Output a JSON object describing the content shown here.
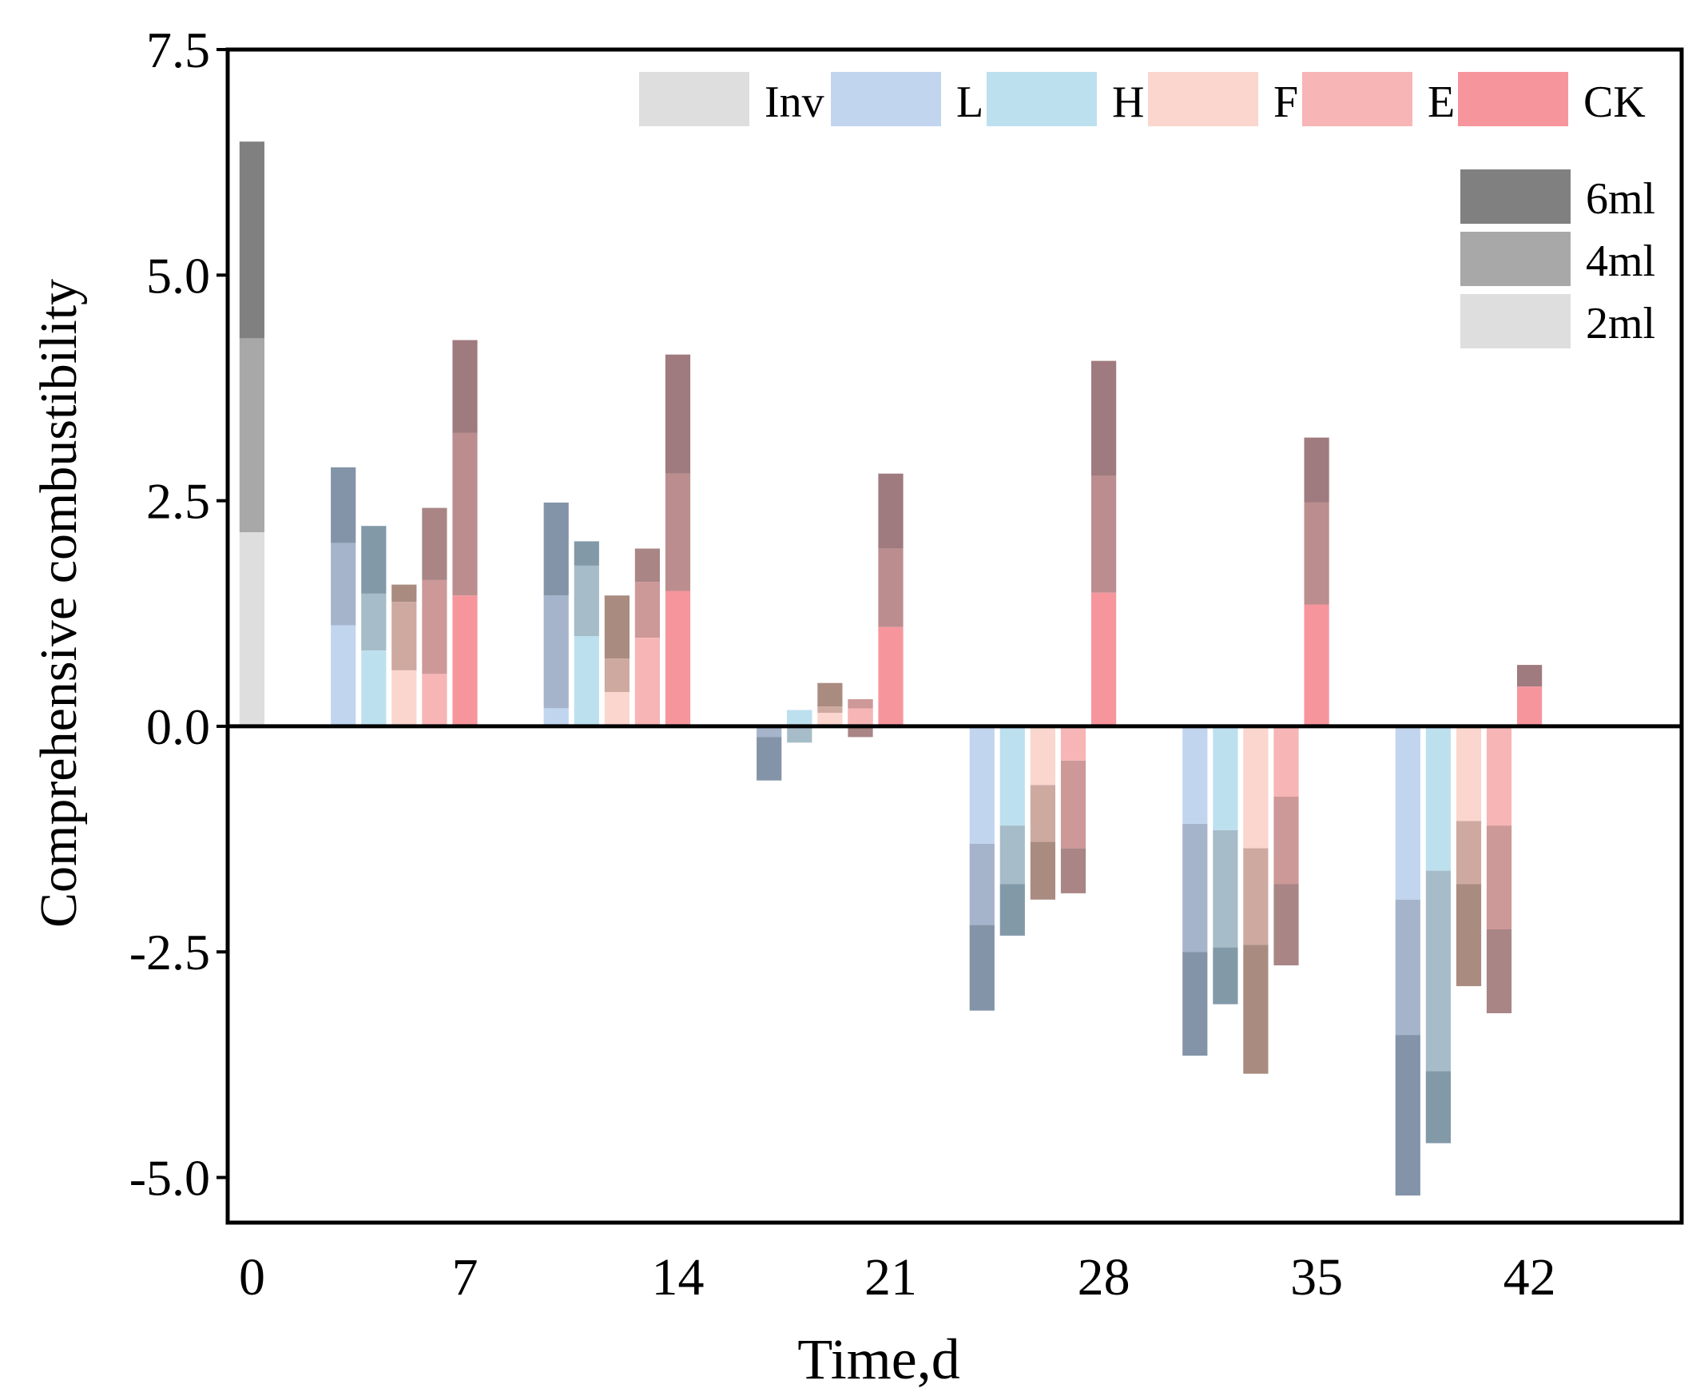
{
  "chart_data": {
    "type": "bar",
    "subtype": "stacked-overlapping",
    "title": "",
    "xlabel": "Time,d",
    "ylabel": "Comprehensive combustibility",
    "ylim": [
      -5.5,
      7.5
    ],
    "xlim": [
      -0.8,
      47
    ],
    "yticks": [
      7.5,
      5.0,
      2.5,
      0.0,
      -2.5,
      -5.0
    ],
    "ytick_labels": [
      "7.5",
      "5.0",
      "2.5",
      "0.0",
      "-2.5",
      "-5.0"
    ],
    "xticks": [
      0,
      7,
      14,
      21,
      28,
      35,
      42
    ],
    "xtick_labels": [
      "0",
      "7",
      "14",
      "21",
      "28",
      "35",
      "42"
    ],
    "groups": [
      "Inv",
      "L",
      "H",
      "F",
      "E",
      "CK"
    ],
    "doses": [
      "2ml",
      "4ml",
      "6ml"
    ],
    "colors": {
      "Inv": "#dedede",
      "L": "#c2d5ef",
      "H": "#bde0ef",
      "F": "#fad6ce",
      "E": "#f7b5b5",
      "CK": "#f7959d",
      "dose6": "#808080",
      "dose4": "#a8a8a8",
      "dose2": "#dedede",
      "L_mid": "#a5b4cb",
      "L_dark": "#8393a8",
      "H_mid": "#a6bcc8",
      "H_dark": "#8299a8",
      "F_mid": "#cea9a0",
      "F_dark": "#a98b80",
      "E_mid": "#cd9898",
      "E_dark": "#a98585",
      "CK_mid": "#bc8d8e",
      "CK_dark": "#9f7a7e"
    },
    "series": [
      {
        "name": "Inv",
        "days": [
          0
        ],
        "x": [
          0
        ],
        "values": [
          [
            2.15,
            4.3,
            6.48
          ]
        ]
      },
      {
        "name": "L",
        "days": [
          7,
          14,
          21,
          28,
          35,
          42
        ],
        "x": [
          3,
          10,
          17,
          24,
          31,
          38
        ],
        "values": [
          [
            1.12,
            2.03,
            2.87
          ],
          [
            0.2,
            1.45,
            2.48
          ],
          [
            0.0,
            -0.12,
            -0.6
          ],
          [
            -1.3,
            -2.2,
            -3.15
          ],
          [
            -1.08,
            -2.5,
            -3.65
          ],
          [
            -1.92,
            -3.42,
            -5.2
          ]
        ]
      },
      {
        "name": "H",
        "days": [
          7,
          14,
          21,
          28,
          35,
          42
        ],
        "x": [
          4,
          11,
          18,
          25,
          32,
          39
        ],
        "values": [
          [
            0.84,
            1.47,
            2.22
          ],
          [
            1.0,
            1.78,
            2.05
          ],
          [
            0.18,
            -0.18,
            -0.18
          ],
          [
            -1.1,
            -1.75,
            -2.32
          ],
          [
            -1.15,
            -2.45,
            -3.08
          ],
          [
            -1.6,
            -3.82,
            -4.62
          ]
        ]
      },
      {
        "name": "F",
        "days": [
          7,
          14,
          21,
          28,
          35,
          42
        ],
        "x": [
          5,
          12,
          19,
          26,
          33,
          40
        ],
        "values": [
          [
            0.62,
            1.38,
            1.57
          ],
          [
            0.38,
            0.75,
            1.45
          ],
          [
            0.15,
            0.22,
            0.48
          ],
          [
            -0.65,
            -1.28,
            -1.92
          ],
          [
            -1.35,
            -2.42,
            -3.85
          ],
          [
            -1.05,
            -1.75,
            -2.88
          ]
        ]
      },
      {
        "name": "E",
        "days": [
          7,
          14,
          21,
          28,
          35,
          42
        ],
        "x": [
          6,
          13,
          20,
          27,
          34,
          41
        ],
        "values": [
          [
            0.58,
            1.62,
            2.42
          ],
          [
            0.98,
            1.6,
            1.97
          ],
          [
            0.2,
            0.3,
            -0.12
          ],
          [
            -0.38,
            -1.35,
            -1.85
          ],
          [
            -0.78,
            -1.75,
            -2.65
          ],
          [
            -1.1,
            -2.25,
            -3.18
          ]
        ]
      },
      {
        "name": "CK",
        "days": [
          7,
          14,
          21,
          28,
          35,
          42
        ],
        "x": [
          7,
          14,
          21,
          28,
          35,
          42
        ],
        "values": [
          [
            1.45,
            3.25,
            4.28
          ],
          [
            1.5,
            2.8,
            4.12
          ],
          [
            1.1,
            1.97,
            2.8
          ],
          [
            1.48,
            2.78,
            4.05
          ],
          [
            1.35,
            2.48,
            3.2
          ],
          [
            0.44,
            0.44,
            0.68
          ]
        ]
      }
    ],
    "legend": {
      "groups_position": "top-right",
      "doses_position": "upper-right"
    }
  }
}
